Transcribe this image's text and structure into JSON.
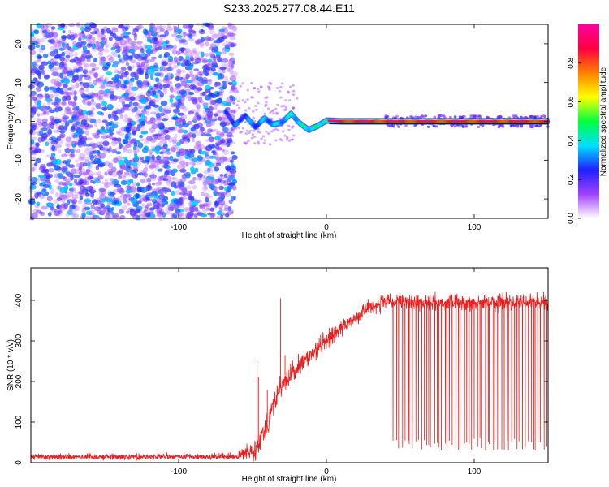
{
  "title": "S233.2025.277.08.44.E11",
  "chart_data": [
    {
      "type": "heatmap",
      "xlabel": "Height of straight line (km)",
      "ylabel": "Frequency (Hz)",
      "xlim": [
        -200,
        150
      ],
      "ylim": [
        -25,
        25
      ],
      "x_ticks": [
        -100,
        0,
        100
      ],
      "y_ticks": [
        -20,
        -10,
        0,
        10,
        20
      ],
      "colorbar": {
        "label": "Normalized spectral amplitude",
        "range": [
          0,
          1
        ],
        "ticks": [
          "0.0",
          "0.2",
          "0.4",
          "0.6",
          "0.8"
        ],
        "colors": [
          "#ffffff",
          "#a040ff",
          "#2020ff",
          "#00e0ff",
          "#00ff40",
          "#ffff00",
          "#ff8000",
          "#ff0040",
          "#ff00a0"
        ]
      },
      "noise_region": {
        "x_range": [
          -200,
          -62
        ],
        "freq_range": [
          -25,
          25
        ],
        "amplitude_range": [
          0.0,
          0.3
        ]
      },
      "ridge": {
        "description_points_x": [
          -68,
          -62,
          -55,
          -48,
          -42,
          -36,
          -30,
          -24,
          -18,
          -12,
          -6,
          0,
          10,
          40,
          80,
          120,
          150
        ],
        "description_points_freq": [
          2.5,
          -1,
          1.5,
          -1.5,
          0.8,
          -0.8,
          -0.3,
          2,
          -0.5,
          -2.2,
          -1.2,
          0.2,
          0,
          0,
          0,
          0,
          0
        ],
        "amplitude_start": 0.4,
        "amplitude_end": 0.9,
        "x_solid_start": 2
      },
      "scattered_blob_region": {
        "x_range": [
          40,
          150
        ],
        "freq_range": [
          -1.5,
          1.5
        ],
        "amplitude_range": [
          0.1,
          0.25
        ]
      }
    },
    {
      "type": "line",
      "xlabel": "Height of straight line (km)",
      "ylabel": "SNR (10 * v/v)",
      "xlim": [
        -200,
        150
      ],
      "ylim": [
        0,
        480
      ],
      "x_ticks": [
        -100,
        0,
        100
      ],
      "y_ticks": [
        0,
        100,
        200,
        300,
        400
      ],
      "color": "#e82020",
      "profile": {
        "x": [
          -200,
          -60,
          -48,
          -42,
          -38,
          -35,
          -32,
          -28,
          -20,
          -10,
          0,
          10,
          20,
          30,
          40,
          150
        ],
        "y": [
          15,
          15,
          35,
          80,
          120,
          150,
          180,
          200,
          230,
          270,
          300,
          330,
          360,
          385,
          395,
          395
        ],
        "noise": [
          8,
          8,
          30,
          35,
          40,
          30,
          30,
          30,
          25,
          25,
          25,
          20,
          20,
          20,
          20,
          20
        ]
      },
      "dropouts": {
        "x_range": [
          45,
          150
        ],
        "count": 58,
        "level_range": [
          30,
          60
        ]
      },
      "spikes": [
        {
          "x": -47,
          "y": 250
        },
        {
          "x": -46,
          "y": 210
        },
        {
          "x": -40,
          "y": 180
        },
        {
          "x": -31,
          "y": 405
        },
        {
          "x": -28,
          "y": 265
        }
      ]
    }
  ]
}
